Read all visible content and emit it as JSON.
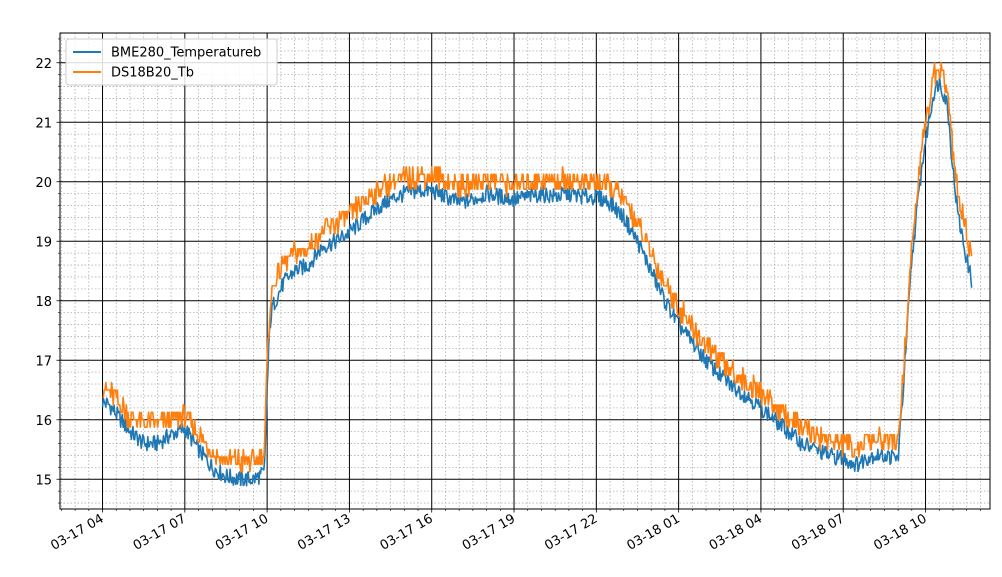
{
  "chart_data": {
    "type": "line",
    "title": "",
    "xlabel": "",
    "ylabel": "",
    "x_ticks": [
      "03-17 04",
      "03-17 07",
      "03-17 10",
      "03-17 13",
      "03-17 16",
      "03-17 19",
      "03-17 22",
      "03-18 01",
      "03-18 04",
      "03-18 07",
      "03-18 10"
    ],
    "x_tick_hours": [
      0,
      3,
      6,
      9,
      12,
      15,
      18,
      21,
      24,
      27,
      30
    ],
    "xlim_hours": [
      -1.55,
      32.35
    ],
    "x_origin_label": "03-17 04",
    "y_ticks": [
      15,
      16,
      17,
      18,
      19,
      20,
      21,
      22
    ],
    "ylim": [
      14.5,
      22.5
    ],
    "grid": {
      "major": true,
      "minor": true
    },
    "legend_position": "upper-left",
    "series": [
      {
        "name": "BME280_Temperatureb",
        "color": "#1f77b4",
        "x": [
          0,
          0.25,
          0.5,
          0.75,
          1,
          1.5,
          2,
          2.5,
          3,
          3.5,
          4,
          4.5,
          5,
          5.5,
          5.9,
          6,
          6.1,
          6.2,
          6.4,
          6.6,
          7,
          7.5,
          8,
          8.5,
          9,
          9.5,
          10,
          10.5,
          11,
          11.5,
          12,
          12.5,
          13,
          13.5,
          14,
          14.5,
          15,
          15.5,
          16,
          16.5,
          17,
          17.5,
          18,
          18.5,
          19,
          19.5,
          20,
          20.5,
          21,
          21.5,
          22,
          22.5,
          23,
          23.5,
          24,
          24.5,
          25,
          25.5,
          26,
          26.5,
          27,
          27.5,
          28,
          28.5,
          29,
          29.2,
          29.5,
          29.8,
          30,
          30.3,
          30.5,
          30.8,
          31,
          31.2,
          31.5,
          31.7
        ],
        "y": [
          16.3,
          16.25,
          16.1,
          15.95,
          15.8,
          15.6,
          15.6,
          15.75,
          15.85,
          15.5,
          15.2,
          15.05,
          15.0,
          15.0,
          15.1,
          16.5,
          17.6,
          17.9,
          18.1,
          18.3,
          18.5,
          18.6,
          18.9,
          19.0,
          19.15,
          19.35,
          19.55,
          19.7,
          19.8,
          19.85,
          19.85,
          19.75,
          19.65,
          19.7,
          19.8,
          19.75,
          19.7,
          19.75,
          19.8,
          19.75,
          19.8,
          19.75,
          19.75,
          19.65,
          19.4,
          19.0,
          18.5,
          18.0,
          17.6,
          17.3,
          17.0,
          16.75,
          16.55,
          16.4,
          16.2,
          16.0,
          15.8,
          15.6,
          15.5,
          15.4,
          15.35,
          15.25,
          15.4,
          15.4,
          15.35,
          16.6,
          18.7,
          20.0,
          20.7,
          21.5,
          21.7,
          21.3,
          20.2,
          19.4,
          18.7,
          18.3
        ]
      },
      {
        "name": "DS18B20_Tb",
        "color": "#ff7f0e",
        "x": [
          0,
          0.25,
          0.5,
          0.75,
          1,
          1.5,
          2,
          2.5,
          3,
          3.5,
          4,
          4.5,
          5,
          5.5,
          5.9,
          6,
          6.1,
          6.2,
          6.4,
          6.6,
          7,
          7.5,
          8,
          8.5,
          9,
          9.5,
          10,
          10.5,
          11,
          11.5,
          12,
          12.5,
          13,
          13.5,
          14,
          14.5,
          15,
          15.5,
          16,
          16.5,
          17,
          17.5,
          18,
          18.5,
          19,
          19.5,
          20,
          20.5,
          21,
          21.5,
          22,
          22.5,
          23,
          23.5,
          24,
          24.5,
          25,
          25.5,
          26,
          26.5,
          27,
          27.5,
          28,
          28.5,
          29,
          29.2,
          29.5,
          29.8,
          30,
          30.3,
          30.5,
          30.8,
          31,
          31.2,
          31.5,
          31.7
        ],
        "y": [
          16.55,
          16.5,
          16.35,
          16.2,
          16.05,
          15.95,
          15.95,
          16.0,
          16.05,
          15.75,
          15.45,
          15.3,
          15.3,
          15.3,
          15.45,
          16.9,
          17.9,
          18.25,
          18.45,
          18.6,
          18.8,
          18.85,
          19.15,
          19.3,
          19.45,
          19.65,
          19.85,
          20.0,
          20.05,
          20.1,
          20.1,
          20.0,
          19.9,
          19.95,
          20.05,
          20.0,
          19.95,
          20.0,
          20.05,
          20.0,
          20.05,
          20.0,
          20.0,
          19.9,
          19.7,
          19.3,
          18.8,
          18.3,
          17.9,
          17.55,
          17.25,
          17.0,
          16.8,
          16.6,
          16.45,
          16.25,
          16.05,
          15.85,
          15.75,
          15.65,
          15.6,
          15.5,
          15.65,
          15.65,
          15.6,
          16.9,
          18.9,
          20.3,
          21.0,
          21.8,
          21.9,
          21.5,
          20.5,
          19.7,
          19.1,
          18.7
        ]
      }
    ]
  }
}
